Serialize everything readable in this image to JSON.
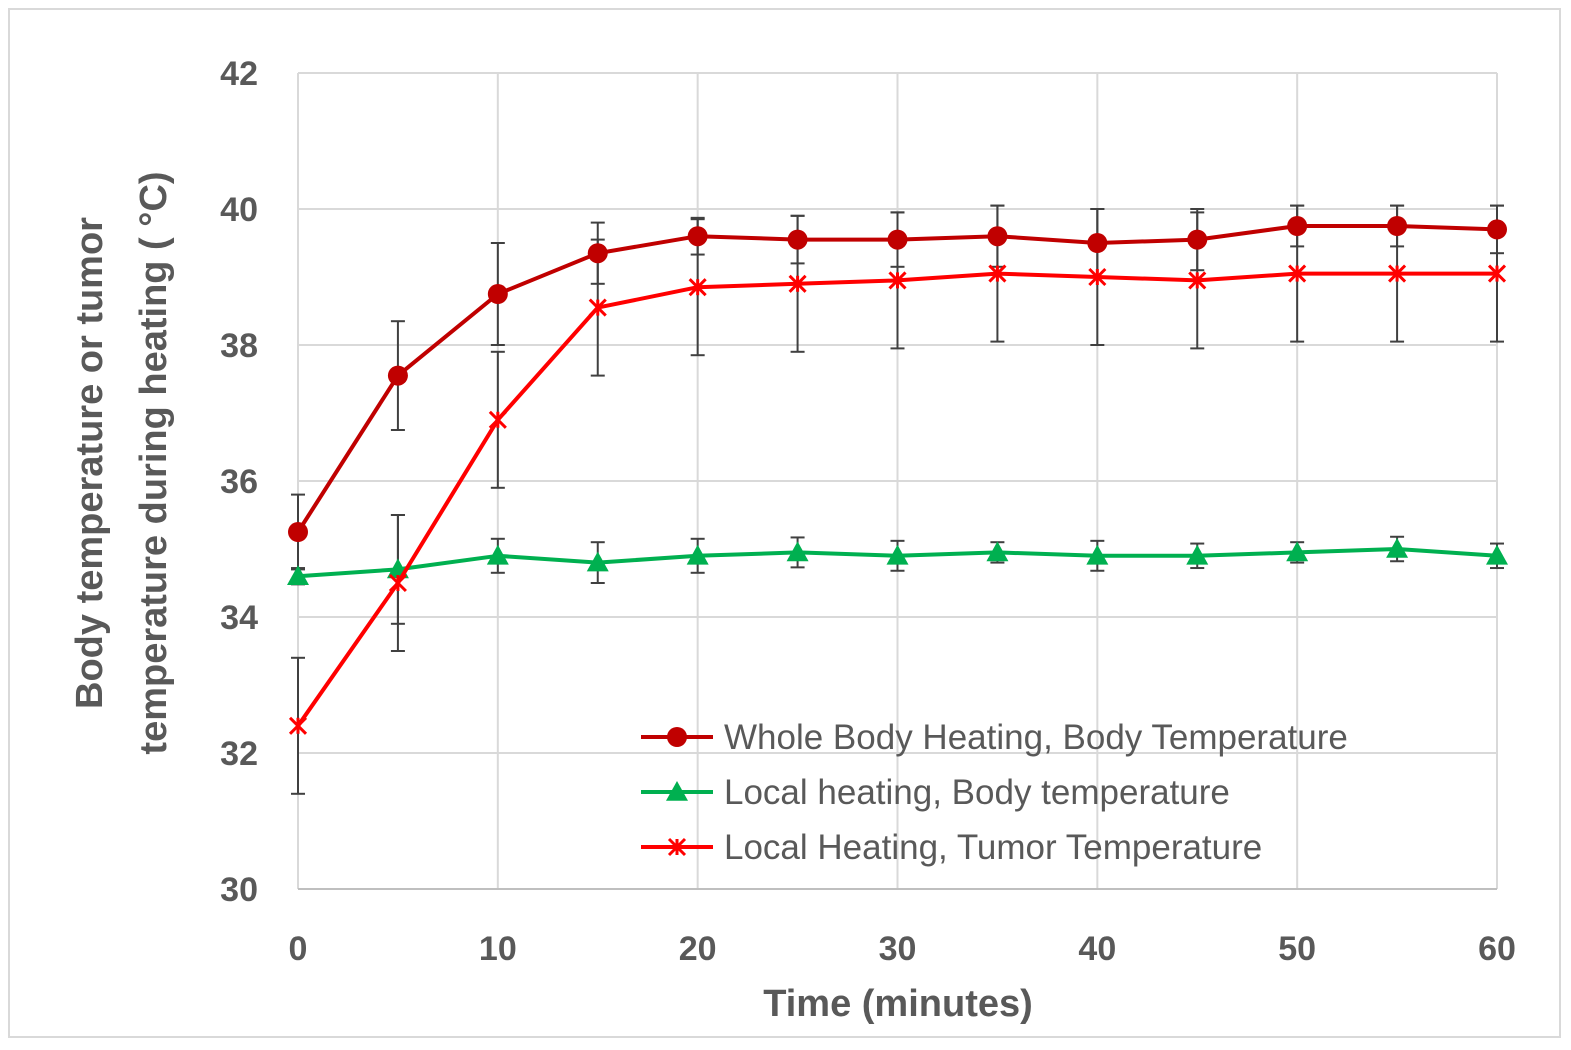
{
  "chart_data": {
    "type": "line",
    "title": "",
    "xlabel": "Time (minutes)",
    "ylabel_lines": [
      "Body temperature or tumor",
      "temperature during heating ( °C)"
    ],
    "x": [
      0,
      5,
      10,
      15,
      20,
      25,
      30,
      35,
      40,
      45,
      50,
      55,
      60
    ],
    "xlim": [
      0,
      60
    ],
    "ylim": [
      30,
      42
    ],
    "xticks": [
      0,
      10,
      20,
      30,
      40,
      50,
      60
    ],
    "yticks": [
      30,
      32,
      34,
      36,
      38,
      40,
      42
    ],
    "xtick_labels": [
      "0",
      "10",
      "20",
      "30",
      "40",
      "50",
      "60"
    ],
    "ytick_labels": [
      "30",
      "32",
      "34",
      "36",
      "38",
      "40",
      "42"
    ],
    "grid": true,
    "legend_position": "bottom-right",
    "series": [
      {
        "name": "Whole Body Heating, Body Temperature",
        "color": "#c00000",
        "marker": "circle",
        "values": [
          35.25,
          37.55,
          38.75,
          39.35,
          39.6,
          39.55,
          39.55,
          39.6,
          39.5,
          39.55,
          39.75,
          39.75,
          39.7
        ],
        "errors": [
          0.55,
          0.8,
          0.75,
          0.45,
          0.27,
          0.35,
          0.4,
          0.45,
          0.5,
          0.45,
          0.3,
          0.3,
          0.35
        ]
      },
      {
        "name": "Local heating, Body temperature",
        "color": "#00b050",
        "marker": "triangle",
        "values": [
          34.6,
          34.7,
          34.9,
          34.8,
          34.9,
          34.95,
          34.9,
          34.95,
          34.9,
          34.9,
          34.95,
          35.0,
          34.9
        ],
        "errors": [
          0.12,
          0.8,
          0.25,
          0.3,
          0.25,
          0.22,
          0.22,
          0.15,
          0.22,
          0.18,
          0.15,
          0.18,
          0.18
        ]
      },
      {
        "name": "Local Heating, Tumor Temperature",
        "color": "#ff0000",
        "marker": "x",
        "values": [
          32.4,
          34.5,
          36.9,
          38.55,
          38.85,
          38.9,
          38.95,
          39.05,
          39.0,
          38.95,
          39.05,
          39.05,
          39.05
        ],
        "errors": [
          1.0,
          1.0,
          1.0,
          1.0,
          1.0,
          1.0,
          1.0,
          1.0,
          1.0,
          1.0,
          1.0,
          1.0,
          1.0
        ]
      }
    ]
  }
}
